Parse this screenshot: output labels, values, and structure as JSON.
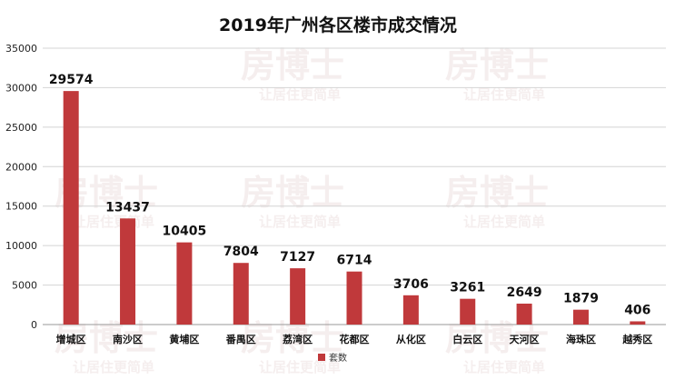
{
  "chart_data": {
    "type": "bar",
    "title": "2019年广州各区楼市成交情况",
    "categories": [
      "增城区",
      "南沙区",
      "黄埔区",
      "番禺区",
      "荔湾区",
      "花都区",
      "从化区",
      "白云区",
      "天河区",
      "海珠区",
      "越秀区"
    ],
    "series": [
      {
        "name": "套数",
        "values": [
          29574,
          13437,
          10405,
          7804,
          7127,
          6714,
          3706,
          3261,
          2649,
          1879,
          406
        ]
      }
    ],
    "ylim": [
      0,
      35000
    ],
    "yticks": [
      0,
      5000,
      10000,
      15000,
      20000,
      25000,
      30000,
      35000
    ],
    "grid": true,
    "legend": "bottom",
    "bar_color": "#c0393b"
  },
  "watermark": {
    "logo_text": "房博士",
    "slogan": "让居住更简单"
  }
}
